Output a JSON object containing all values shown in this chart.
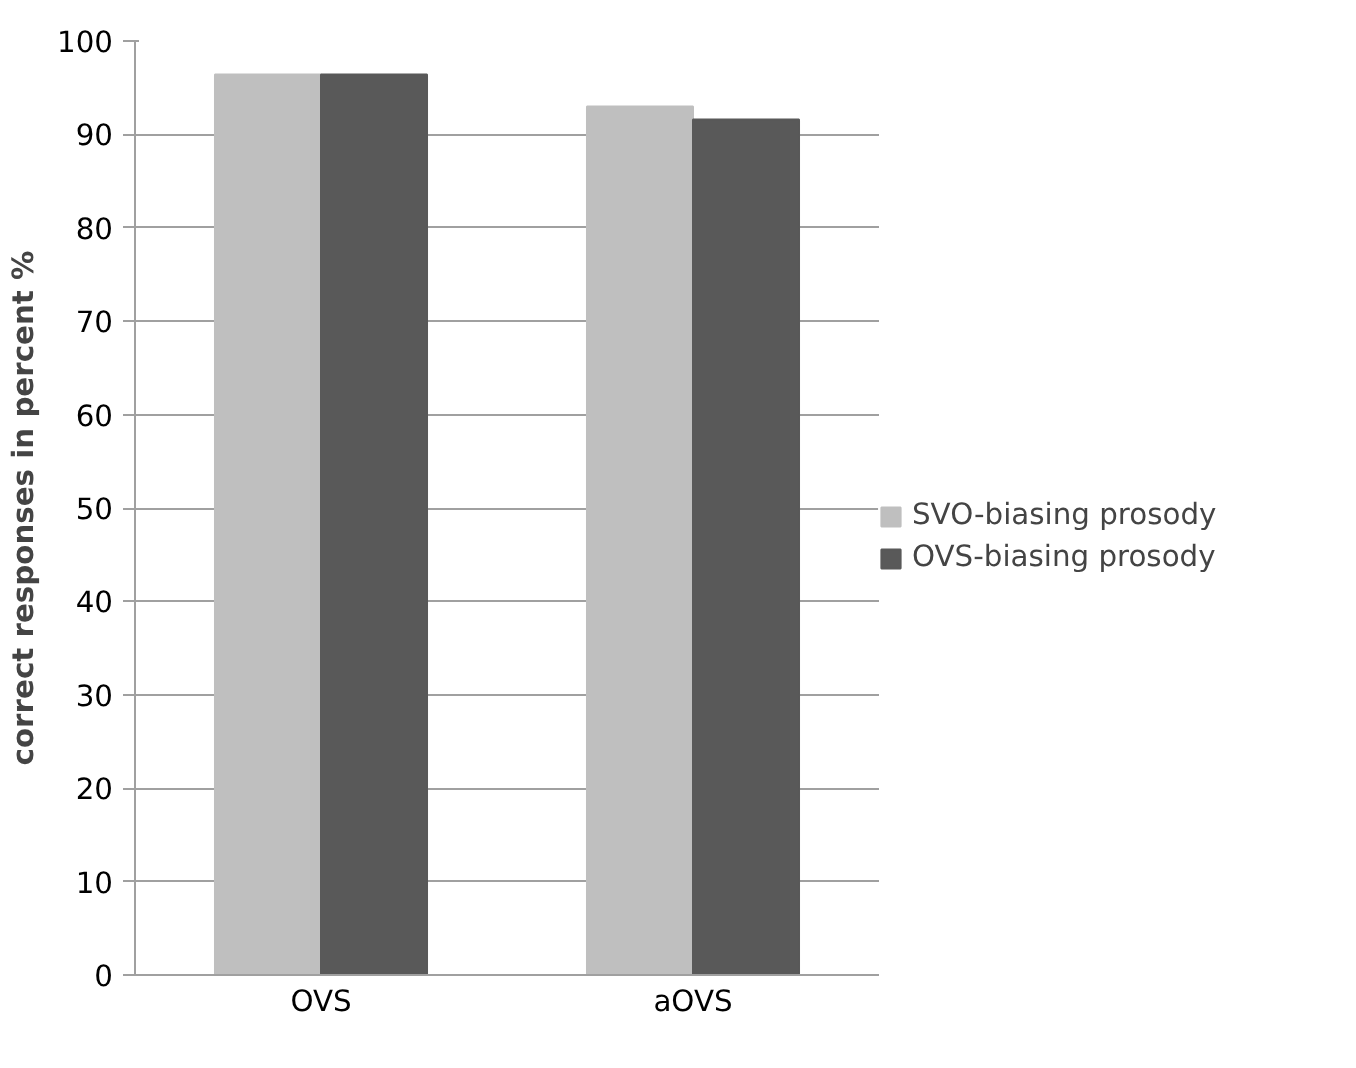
{
  "chart_data": {
    "type": "bar",
    "ylabel": "correct responses in percent %",
    "categories": [
      "OVS",
      "aOVS"
    ],
    "series": [
      {
        "name": "SVO-biasing prosody",
        "color": "#bfbfbf",
        "values": [
          96.4,
          93.0
        ]
      },
      {
        "name": "OVS-biasing prosody",
        "color": "#595959",
        "values": [
          96.4,
          91.6
        ]
      }
    ],
    "ylim": [
      0,
      100
    ],
    "yticks": [
      0,
      10,
      20,
      30,
      40,
      50,
      60,
      70,
      80,
      90,
      100
    ],
    "grid": "y",
    "legend": "right"
  }
}
